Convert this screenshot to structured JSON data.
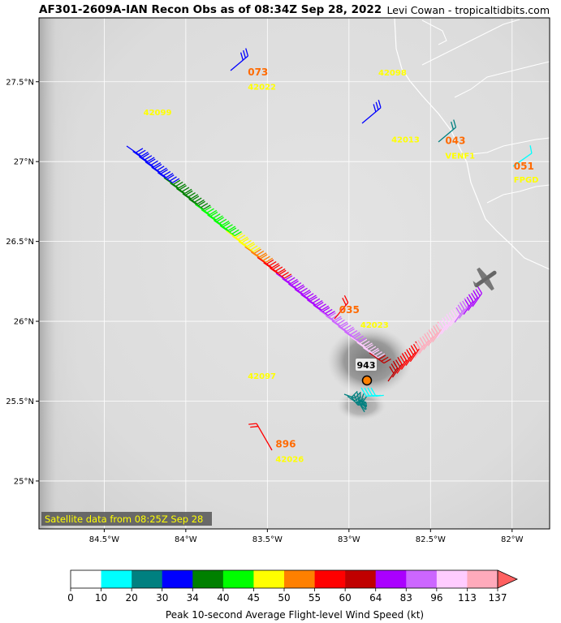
{
  "header": {
    "title": "AF301-2609A-IAN Recon Obs as of 08:34Z Sep 28, 2022",
    "credit": "Levi Cowan - tropicaltidbits.com"
  },
  "map": {
    "lon_range": [
      -84.9,
      -81.77
    ],
    "lat_range": [
      24.7,
      27.9
    ],
    "lat_ticks": [
      "27.5°N",
      "27°N",
      "26.5°N",
      "26°N",
      "25.5°N",
      "25°N"
    ],
    "lon_ticks": [
      "84.5°W",
      "84°W",
      "83.5°W",
      "83°W",
      "82.5°W",
      "82°W"
    ],
    "satellite_note": "Satellite data from 08:25Z Sep 28",
    "center_pressure": "943",
    "stations": [
      {
        "id": "42022",
        "lon": -83.62,
        "lat": 27.45
      },
      {
        "id": "42099",
        "lon": -84.26,
        "lat": 27.29
      },
      {
        "id": "42098",
        "lon": -82.82,
        "lat": 27.54
      },
      {
        "id": "42013",
        "lon": -82.74,
        "lat": 27.12
      },
      {
        "id": "VENF1",
        "lon": -82.41,
        "lat": 27.02
      },
      {
        "id": "FPGD",
        "lon": -81.99,
        "lat": 26.87
      },
      {
        "id": "42023",
        "lon": -82.93,
        "lat": 25.96
      },
      {
        "id": "42097",
        "lon": -83.62,
        "lat": 25.64
      },
      {
        "id": "42026",
        "lon": -83.45,
        "lat": 25.12
      }
    ],
    "obs_labels": [
      {
        "text": "073",
        "lon": -83.62,
        "lat": 27.54
      },
      {
        "text": "043",
        "lon": -82.41,
        "lat": 27.11
      },
      {
        "text": "051",
        "lon": -81.99,
        "lat": 26.95
      },
      {
        "text": "035",
        "lon": -83.06,
        "lat": 26.05
      },
      {
        "text": "896",
        "lon": -83.45,
        "lat": 25.21
      }
    ]
  },
  "colorbar": {
    "label": "Peak 10-second Average Flight-level Wind Speed (kt)",
    "ticks": [
      "0",
      "10",
      "20",
      "30",
      "34",
      "40",
      "45",
      "50",
      "55",
      "60",
      "64",
      "83",
      "96",
      "113",
      "137"
    ],
    "colors": [
      "#ffffff",
      "#00ffff",
      "#008080",
      "#0000ff",
      "#008000",
      "#00ff00",
      "#ffff00",
      "#ff8000",
      "#ff0000",
      "#c00000",
      "#aa00ff",
      "#cc66ff",
      "#ffccff",
      "#ffaabb"
    ],
    "extend_color": "#ff6060"
  }
}
